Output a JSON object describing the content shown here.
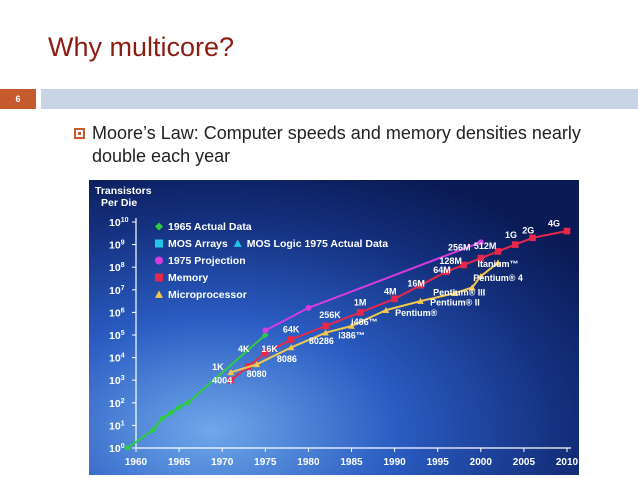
{
  "slide": {
    "title": "Why multicore?",
    "number": "6",
    "bullet": "Moore’s Law: Computer speeds and memory densities nearly double each year"
  },
  "chart_data": {
    "type": "line",
    "ylabel": "Transistors Per Die",
    "ylabel_lines": [
      "Transistors",
      "Per Die"
    ],
    "x_ticks": [
      "1960",
      "1965",
      "1970",
      "1975",
      "1980",
      "1985",
      "1990",
      "1995",
      "2000",
      "2005",
      "2010"
    ],
    "y_ticks": [
      {
        "base": "10",
        "exp": "0",
        "v": 0
      },
      {
        "base": "10",
        "exp": "1",
        "v": 1
      },
      {
        "base": "10",
        "exp": "2",
        "v": 2
      },
      {
        "base": "10",
        "exp": "3",
        "v": 3
      },
      {
        "base": "10",
        "exp": "4",
        "v": 4
      },
      {
        "base": "10",
        "exp": "5",
        "v": 5
      },
      {
        "base": "10",
        "exp": "6",
        "v": 6
      },
      {
        "base": "10",
        "exp": "7",
        "v": 7
      },
      {
        "base": "10",
        "exp": "8",
        "v": 8
      },
      {
        "base": "10",
        "exp": "9",
        "v": 9
      },
      {
        "base": "10",
        "exp": "10",
        "v": 10
      }
    ],
    "xlim": [
      1960,
      2010
    ],
    "ylim": [
      0,
      10
    ],
    "y_scale": "log10",
    "legend": [
      {
        "label": "1965 Actual Data",
        "marker": "diamond",
        "color": "#2ecc40"
      },
      {
        "label": "MOS Arrays",
        "marker": "square",
        "color": "#22c7e8"
      },
      {
        "label": "MOS Logic 1975 Actual Data",
        "marker": "triangle",
        "color": "#22c7e8"
      },
      {
        "label": "1975 Projection",
        "marker": "circle",
        "color": "#d63be0"
      },
      {
        "label": "Memory",
        "marker": "square",
        "color": "#e8284a"
      },
      {
        "label": "Microprocessor",
        "marker": "triangle",
        "color": "#f2c94c"
      }
    ],
    "series": [
      {
        "name": "1965 Actual Data",
        "color": "#2ecc40",
        "marker": "diamond",
        "points": [
          [
            1959,
            0
          ],
          [
            1962,
            0.8
          ],
          [
            1963,
            1.3
          ],
          [
            1964,
            1.55
          ],
          [
            1965,
            1.8
          ],
          [
            1966,
            2.0
          ],
          [
            1975,
            5.0
          ]
        ]
      },
      {
        "name": "1975 Projection",
        "color": "#d63be0",
        "marker": "circle",
        "points": [
          [
            1975,
            5.2
          ],
          [
            1980,
            6.2
          ],
          [
            2000,
            9.1
          ]
        ]
      },
      {
        "name": "Memory",
        "color": "#e8284a",
        "marker": "square",
        "points": [
          [
            1971,
            3.0
          ],
          [
            1973,
            3.6
          ],
          [
            1975,
            4.2
          ],
          [
            1978,
            4.8
          ],
          [
            1982,
            5.4
          ],
          [
            1986,
            6.0
          ],
          [
            1990,
            6.6
          ],
          [
            1993,
            7.2
          ],
          [
            1996,
            7.8
          ],
          [
            1998,
            8.1
          ],
          [
            2000,
            8.4
          ],
          [
            2002,
            8.7
          ],
          [
            2004,
            9.0
          ],
          [
            2006,
            9.3
          ],
          [
            2010,
            9.6
          ]
        ]
      },
      {
        "name": "Microprocessor",
        "color": "#f2c94c",
        "marker": "triangle",
        "points": [
          [
            1971,
            3.35
          ],
          [
            1974,
            3.7
          ],
          [
            1978,
            4.45
          ],
          [
            1982,
            5.1
          ],
          [
            1985,
            5.4
          ],
          [
            1989,
            6.1
          ],
          [
            1993,
            6.5
          ],
          [
            1997,
            6.85
          ],
          [
            1999,
            7.1
          ],
          [
            2000,
            7.6
          ],
          [
            2002,
            8.2
          ]
        ]
      }
    ],
    "annotations": [
      {
        "text": "1K",
        "x": 1969.5,
        "y": 3.45
      },
      {
        "text": "4K",
        "x": 1972.5,
        "y": 4.25
      },
      {
        "text": "16K",
        "x": 1975.5,
        "y": 4.25
      },
      {
        "text": "64K",
        "x": 1978,
        "y": 5.1
      },
      {
        "text": "256K",
        "x": 1982.5,
        "y": 5.75
      },
      {
        "text": "1M",
        "x": 1986,
        "y": 6.3
      },
      {
        "text": "4M",
        "x": 1989.5,
        "y": 6.8
      },
      {
        "text": "16M",
        "x": 1992.5,
        "y": 7.15
      },
      {
        "text": "64M",
        "x": 1995.5,
        "y": 7.75
      },
      {
        "text": "128M",
        "x": 1996.5,
        "y": 8.15
      },
      {
        "text": "256M",
        "x": 1997.5,
        "y": 8.75
      },
      {
        "text": "512M",
        "x": 2000.5,
        "y": 8.8
      },
      {
        "text": "1G",
        "x": 2003.5,
        "y": 9.3
      },
      {
        "text": "2G",
        "x": 2005.5,
        "y": 9.5
      },
      {
        "text": "4G",
        "x": 2008.5,
        "y": 9.8
      },
      {
        "text": "4004",
        "x": 1970,
        "y": 2.85
      },
      {
        "text": "8080",
        "x": 1974,
        "y": 3.15
      },
      {
        "text": "8086",
        "x": 1977.5,
        "y": 3.8
      },
      {
        "text": "80286",
        "x": 1981.5,
        "y": 4.6
      },
      {
        "text": "i386™",
        "x": 1985,
        "y": 4.85
      },
      {
        "text": "i486™",
        "x": 1986.5,
        "y": 5.45
      },
      {
        "text": "Pentium®",
        "x": 1992.5,
        "y": 5.85
      },
      {
        "text": "Pentium® II",
        "x": 1997,
        "y": 6.3
      },
      {
        "text": "Pentium® III",
        "x": 1997.5,
        "y": 6.75
      },
      {
        "text": "Pentium® 4",
        "x": 2002,
        "y": 7.4
      },
      {
        "text": "Itanium™",
        "x": 2002,
        "y": 8.0
      }
    ]
  }
}
